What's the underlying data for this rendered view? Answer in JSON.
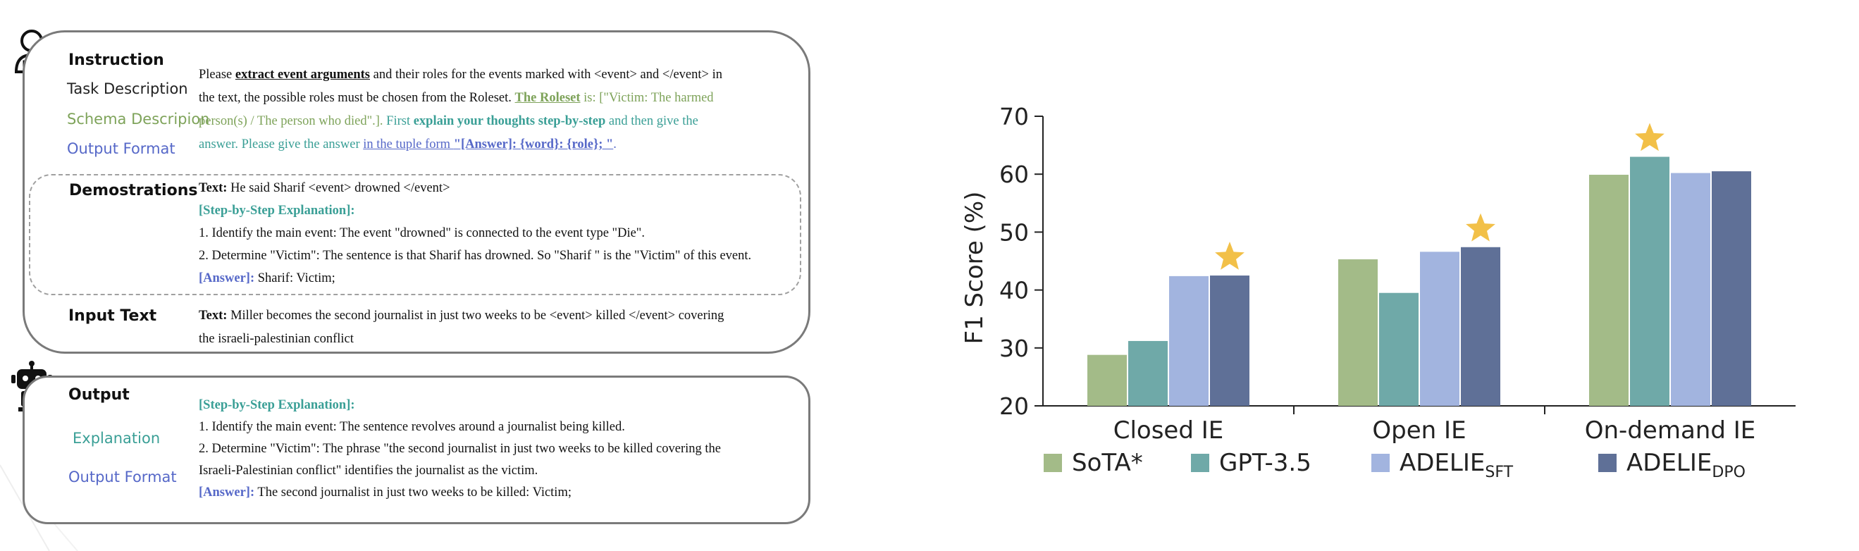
{
  "left_panel": {
    "instruction": {
      "title": "Instruction",
      "task_label": "Task Description",
      "schema_label": "Schema Descripion",
      "format_label": "Output Format",
      "t_please": "Please ",
      "t_extract": "extract event arguments",
      "t_roles": " and their roles for the events marked with <event> and </event> in",
      "t_line2": "the text, the possible roles must be chosen from the Roleset. ",
      "t_roleset": "The Roleset",
      "t_is": " is: [\"Victim: The harmed",
      "t_line3": "person(s) / The person who died\".]. ",
      "t_first": "First ",
      "t_explain": "explain your thoughts step-by-step",
      "t_then": " and then give the",
      "t_line4": "answer. Please give the answer ",
      "t_tuple": "in the tuple form ",
      "t_answer_fmt": "\"[Answer]: {word}: {role}; \"",
      "t_period": "."
    },
    "demonstrations": {
      "title": "Demostrations",
      "text_label": "Text:",
      "text_value": " He said Sharif <event> drowned </event>",
      "step_label": "[Step-by-Step Explanation]:",
      "step1": "1. Identify the main event: The event \"drowned\" is connected to the event type \"Die\".",
      "step2": "2. Determine \"Victim\": The sentence is that Sharif has drowned. So \"Sharif \" is the \"Victim\" of this event.",
      "answer_label": "[Answer]:",
      "answer_value": " Sharif: Victim;"
    },
    "input": {
      "title": "Input Text",
      "text_label": "Text:",
      "line1": " Miller becomes the second journalist in just two weeks to be <event> killed </event> covering",
      "line2": "the israeli-palestinian conflict"
    },
    "output": {
      "title": "Output",
      "explanation_label": "Explanation",
      "format_label": "Output Format",
      "step_label": "[Step-by-Step Explanation]:",
      "step1": "1. Identify the main event: The sentence revolves around a journalist being killed.",
      "step2a": "2. Determine \"Victim\": The phrase \"the second journalist in just two weeks to be killed covering the",
      "step2b": "Israeli-Palestinian conflict\" identifies the journalist as the victim.",
      "answer_label": "[Answer]:",
      "answer_value": " The second journalist in just two weeks to be killed: Victim;"
    },
    "icons": [
      "user-icon",
      "robot-icon"
    ],
    "colors": {
      "teal": "#3a9f96",
      "green": "#7ea35a",
      "blue": "#5668c8"
    }
  },
  "chart_data": {
    "type": "bar",
    "categories": [
      "Closed IE",
      "Open IE",
      "On-demand IE"
    ],
    "series": [
      {
        "name": "SoTA*",
        "color": "#a3bb88",
        "values": [
          28.8,
          45.3,
          59.9
        ]
      },
      {
        "name": "GPT-3.5",
        "color": "#6fa9a8",
        "values": [
          31.2,
          39.5,
          63.0
        ]
      },
      {
        "name": "ADELIE",
        "sub": "SFT",
        "color": "#a2b4df",
        "values": [
          42.4,
          46.6,
          60.2
        ]
      },
      {
        "name": "ADELIE",
        "sub": "DPO",
        "color": "#5f7097",
        "values": [
          42.5,
          47.4,
          60.5
        ]
      }
    ],
    "highlight": {
      "icon": "star-icon",
      "color": "#f2c048",
      "marks": [
        [
          0,
          3
        ],
        [
          1,
          3
        ],
        [
          2,
          1
        ]
      ]
    },
    "ylabel": "F1 Score (%)",
    "ylim": [
      20,
      70
    ],
    "yticks": [
      20,
      30,
      40,
      50,
      60,
      70
    ],
    "legend_position": "bottom",
    "grid": false
  }
}
